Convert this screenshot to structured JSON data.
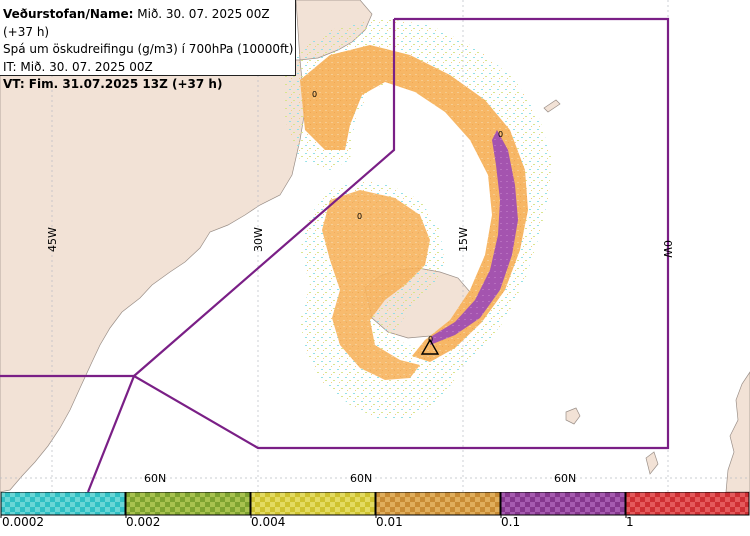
{
  "header": {
    "line1_prefix": "Veðurstofan/Name:",
    "line1_value": " Mið. 30. 07. 2025 00Z (+37 h)",
    "line2": "Spá um öskudreifingu (g/m3) í 700hPa (10000ft)",
    "line3": "IT: Mið. 30. 07. 2025 00Z",
    "line4": "VT: Fim. 31.07.2025 13Z (+37 h)"
  },
  "map": {
    "longitude_labels": [
      "45W",
      "30W",
      "15W",
      "0W"
    ],
    "latitude_labels": [
      "60N",
      "60N",
      "60N"
    ],
    "contour_labels": [
      "0",
      "0",
      "0",
      "0"
    ],
    "colors": {
      "land": "#f2e2d6",
      "sea": "#ffffff",
      "boundary": "#7a1f86",
      "orange": "#f5b05a",
      "purple": "#9d4fb2",
      "volcano_marker": "#000000"
    }
  },
  "legend": {
    "labels": [
      "0.0002",
      "0.002",
      "0.004",
      "0.01",
      "0.1",
      "1"
    ],
    "colors": [
      "#45c8c8",
      "#8fb43a",
      "#d7cf3c",
      "#d49a3e",
      "#93419a",
      "#d8383a"
    ]
  }
}
